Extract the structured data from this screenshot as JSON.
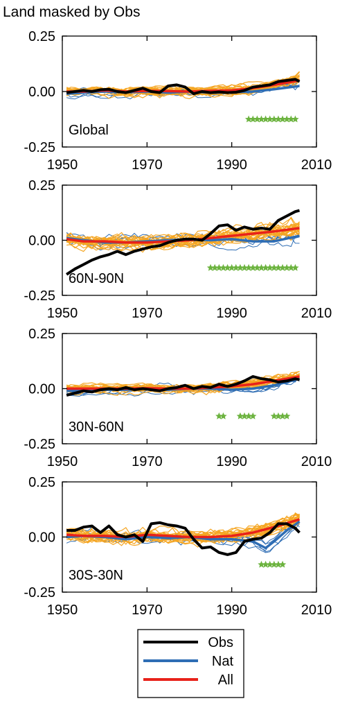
{
  "title": "Land masked by Obs",
  "chart_data": [
    {
      "type": "line",
      "panel_label": "Global",
      "xlim": [
        1950,
        2010
      ],
      "ylim": [
        -0.25,
        0.25
      ],
      "xticks": [
        "1950",
        "1970",
        "1990",
        "2010"
      ],
      "yticks": [
        "0.25",
        "0.00",
        "-0.25"
      ],
      "series": [
        {
          "name": "Obs",
          "color": "#000000",
          "x": [
            1951,
            1953,
            1955,
            1957,
            1959,
            1961,
            1963,
            1965,
            1967,
            1969,
            1971,
            1973,
            1975,
            1977,
            1979,
            1981,
            1983,
            1985,
            1987,
            1989,
            1991,
            1993,
            1995,
            1997,
            1999,
            2001,
            2003,
            2005,
            2006
          ],
          "y": [
            -0.005,
            0.0,
            0.005,
            0.0,
            0.008,
            0.01,
            0.0,
            -0.005,
            0.005,
            0.015,
            0.0,
            -0.005,
            0.025,
            0.03,
            0.02,
            -0.01,
            0.0,
            -0.005,
            -0.002,
            -0.005,
            -0.003,
            0.005,
            0.02,
            0.025,
            0.03,
            0.045,
            0.05,
            0.055,
            0.045
          ]
        },
        {
          "name": "Nat",
          "color": "#2e6db4",
          "x": [
            1951,
            1955,
            1960,
            1965,
            1970,
            1975,
            1980,
            1985,
            1990,
            1995,
            2000,
            2006
          ],
          "y": [
            -0.01,
            -0.005,
            0.0,
            -0.003,
            0.0,
            -0.005,
            0.0,
            -0.005,
            -0.003,
            0.0,
            0.01,
            0.025
          ]
        },
        {
          "name": "All",
          "color": "#e8221a",
          "x": [
            1951,
            1955,
            1960,
            1965,
            1970,
            1975,
            1980,
            1985,
            1990,
            1995,
            2000,
            2006
          ],
          "y": [
            0.0,
            0.0,
            0.005,
            0.0,
            0.003,
            0.002,
            0.0,
            0.003,
            0.005,
            0.015,
            0.03,
            0.05
          ]
        }
      ],
      "significant_years": [
        1994,
        1995,
        1996,
        1997,
        1998,
        1999,
        2000,
        2001,
        2002,
        2003,
        2004,
        2005
      ]
    },
    {
      "type": "line",
      "panel_label": "60N-90N",
      "xlim": [
        1950,
        2010
      ],
      "ylim": [
        -0.25,
        0.25
      ],
      "xticks": [
        "1950",
        "1970",
        "1990",
        "2010"
      ],
      "yticks": [
        "0.25",
        "0.00",
        "-0.25"
      ],
      "series": [
        {
          "name": "Obs",
          "color": "#000000",
          "x": [
            1951,
            1953,
            1955,
            1957,
            1959,
            1961,
            1963,
            1965,
            1967,
            1969,
            1971,
            1973,
            1975,
            1977,
            1979,
            1981,
            1983,
            1985,
            1987,
            1989,
            1991,
            1993,
            1995,
            1997,
            1999,
            2001,
            2003,
            2005,
            2006
          ],
          "y": [
            -0.155,
            -0.13,
            -0.11,
            -0.09,
            -0.075,
            -0.065,
            -0.05,
            -0.065,
            -0.05,
            -0.04,
            -0.03,
            -0.025,
            -0.01,
            0.0,
            0.005,
            0.005,
            0.0,
            0.03,
            0.065,
            0.07,
            0.045,
            0.06,
            0.05,
            0.055,
            0.05,
            0.09,
            0.11,
            0.13,
            0.135
          ]
        },
        {
          "name": "Nat",
          "color": "#2e6db4",
          "x": [
            1951,
            1955,
            1960,
            1965,
            1970,
            1975,
            1980,
            1985,
            1990,
            1995,
            2000,
            2006
          ],
          "y": [
            0.01,
            0.0,
            -0.01,
            -0.01,
            -0.005,
            0.0,
            0.005,
            0.0,
            0.005,
            -0.005,
            -0.005,
            0.02
          ]
        },
        {
          "name": "All",
          "color": "#e8221a",
          "x": [
            1951,
            1955,
            1960,
            1965,
            1970,
            1975,
            1980,
            1985,
            1990,
            1995,
            2000,
            2006
          ],
          "y": [
            0.005,
            -0.005,
            -0.005,
            -0.01,
            -0.01,
            -0.005,
            0.0,
            0.01,
            0.02,
            0.03,
            0.04,
            0.055
          ]
        }
      ],
      "significant_years": [
        1985,
        1986,
        1987,
        1988,
        1989,
        1990,
        1991,
        1992,
        1993,
        1994,
        1995,
        1996,
        1997,
        1998,
        1999,
        2000,
        2001,
        2002,
        2003,
        2004,
        2005
      ]
    },
    {
      "type": "line",
      "panel_label": "30N-60N",
      "xlim": [
        1950,
        2010
      ],
      "ylim": [
        -0.25,
        0.25
      ],
      "xticks": [
        "1950",
        "1970",
        "1990",
        "2010"
      ],
      "yticks": [
        "0.25",
        "0.00",
        "-0.25"
      ],
      "series": [
        {
          "name": "Obs",
          "color": "#000000",
          "x": [
            1951,
            1953,
            1955,
            1957,
            1959,
            1961,
            1963,
            1965,
            1967,
            1969,
            1971,
            1973,
            1975,
            1977,
            1979,
            1981,
            1983,
            1985,
            1987,
            1989,
            1991,
            1993,
            1995,
            1997,
            1999,
            2001,
            2003,
            2005,
            2006
          ],
          "y": [
            -0.03,
            -0.02,
            -0.01,
            -0.015,
            -0.005,
            0.0,
            -0.005,
            0.005,
            -0.005,
            0.0,
            -0.005,
            -0.01,
            0.0,
            0.005,
            0.015,
            0.0,
            0.01,
            0.005,
            0.02,
            0.01,
            0.02,
            0.035,
            0.055,
            0.045,
            0.04,
            0.03,
            0.035,
            0.045,
            0.04
          ]
        },
        {
          "name": "Nat",
          "color": "#2e6db4",
          "x": [
            1951,
            1955,
            1960,
            1965,
            1970,
            1975,
            1980,
            1985,
            1990,
            1995,
            2000,
            2006
          ],
          "y": [
            -0.01,
            -0.01,
            -0.005,
            -0.005,
            0.0,
            -0.005,
            0.0,
            0.0,
            -0.005,
            0.0,
            0.015,
            0.045
          ]
        },
        {
          "name": "All",
          "color": "#e8221a",
          "x": [
            1951,
            1955,
            1960,
            1965,
            1970,
            1975,
            1980,
            1985,
            1990,
            1995,
            2000,
            2006
          ],
          "y": [
            0.0,
            0.0,
            0.0,
            0.0,
            0.002,
            0.0,
            0.0,
            0.005,
            0.01,
            0.02,
            0.035,
            0.055
          ]
        }
      ],
      "significant_years": [
        1987,
        1988,
        1992,
        1993,
        1994,
        1995,
        2000,
        2001,
        2002,
        2003
      ]
    },
    {
      "type": "line",
      "panel_label": "30S-30N",
      "xlim": [
        1950,
        2010
      ],
      "ylim": [
        -0.25,
        0.25
      ],
      "xticks": [
        "1950",
        "1970",
        "1990",
        "2010"
      ],
      "yticks": [
        "0.25",
        "0.00",
        "-0.25"
      ],
      "series": [
        {
          "name": "Obs",
          "color": "#000000",
          "x": [
            1951,
            1953,
            1955,
            1957,
            1959,
            1961,
            1963,
            1965,
            1967,
            1969,
            1971,
            1973,
            1975,
            1977,
            1979,
            1981,
            1983,
            1985,
            1987,
            1989,
            1991,
            1993,
            1995,
            1997,
            1999,
            2001,
            2003,
            2005,
            2006
          ],
          "y": [
            0.03,
            0.03,
            0.045,
            0.05,
            0.02,
            0.05,
            0.01,
            0.0,
            0.01,
            -0.02,
            0.06,
            0.065,
            0.055,
            0.05,
            0.04,
            -0.01,
            -0.05,
            -0.045,
            -0.07,
            -0.08,
            -0.07,
            -0.02,
            -0.01,
            -0.005,
            0.02,
            0.06,
            0.06,
            0.04,
            0.02
          ]
        },
        {
          "name": "Nat",
          "color": "#2e6db4",
          "x": [
            1951,
            1955,
            1960,
            1965,
            1970,
            1975,
            1980,
            1985,
            1990,
            1995,
            1998,
            2000,
            2003,
            2006
          ],
          "y": [
            0.0,
            0.005,
            0.0,
            -0.01,
            0.0,
            -0.005,
            0.0,
            -0.01,
            -0.01,
            -0.02,
            -0.05,
            -0.02,
            0.03,
            0.07
          ]
        },
        {
          "name": "All",
          "color": "#e8221a",
          "x": [
            1951,
            1955,
            1960,
            1965,
            1970,
            1975,
            1980,
            1985,
            1990,
            1995,
            2000,
            2006
          ],
          "y": [
            0.01,
            0.005,
            0.005,
            0.0,
            0.01,
            0.005,
            0.0,
            0.0,
            0.005,
            0.02,
            0.045,
            0.08
          ]
        }
      ],
      "significant_years": [
        1997,
        1998,
        1999,
        2000,
        2001,
        2002
      ]
    }
  ],
  "legend": {
    "position": "bottom-center",
    "items": [
      {
        "label": "Obs",
        "color": "#000000"
      },
      {
        "label": "Nat",
        "color": "#2e6db4"
      },
      {
        "label": "All",
        "color": "#e8221a"
      }
    ]
  },
  "ensemble_color": "#f5a623",
  "star_color": "#6cb33f"
}
